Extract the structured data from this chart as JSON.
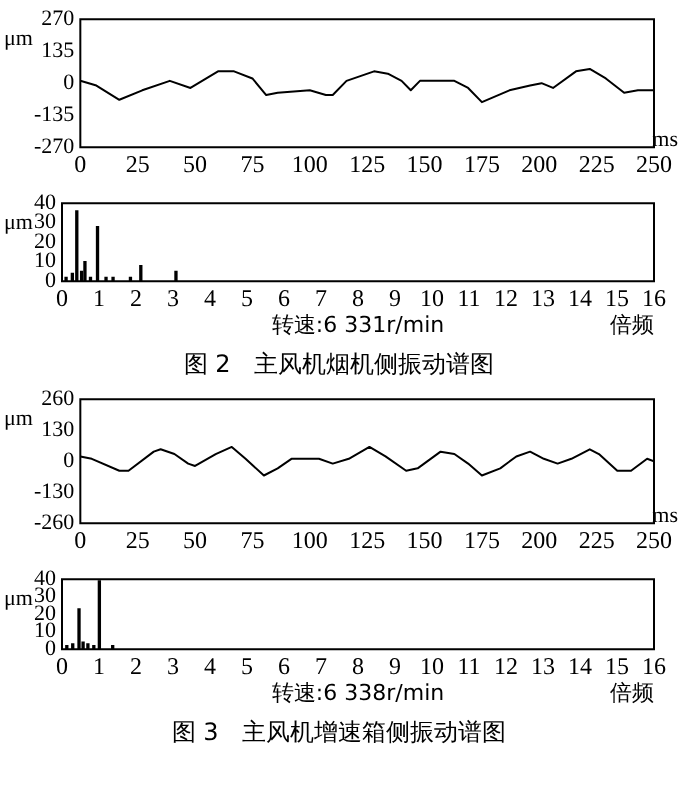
{
  "chart_data": [
    {
      "type": "line",
      "ylabel": "μm",
      "xlabel": "ms",
      "color": "#000000",
      "grid": false,
      "legend": false,
      "marker": "none",
      "line_style": "solid",
      "xlim": [
        0,
        250
      ],
      "xticks": [
        0,
        25,
        50,
        75,
        100,
        125,
        150,
        175,
        200,
        225,
        250
      ],
      "ylim": [
        -270,
        270
      ],
      "yticks": [
        -270,
        -135,
        0,
        135,
        270
      ],
      "x": [
        0,
        7,
        17,
        27,
        39,
        48,
        60,
        67,
        75,
        81,
        86,
        100,
        107,
        110,
        116,
        128,
        134,
        140,
        144,
        148,
        163,
        169,
        175,
        187,
        196,
        201,
        206,
        216,
        222,
        229,
        237,
        243,
        250
      ],
      "values": [
        10,
        -10,
        -70,
        -30,
        10,
        -20,
        50,
        50,
        20,
        -50,
        -40,
        -30,
        -50,
        -50,
        10,
        50,
        40,
        10,
        -30,
        10,
        10,
        -20,
        -80,
        -30,
        -10,
        0,
        -20,
        50,
        60,
        20,
        -40,
        -30,
        -30
      ]
    },
    {
      "type": "bar",
      "ylabel": "μm",
      "xlabel": "倍频",
      "color": "#000000",
      "grid": false,
      "legend": false,
      "xlim": [
        0,
        16
      ],
      "xticks": [
        0,
        1,
        2,
        3,
        4,
        5,
        6,
        7,
        8,
        9,
        10,
        11,
        12,
        13,
        14,
        15,
        16
      ],
      "ylim": [
        0,
        40
      ],
      "yticks": [
        0,
        10,
        20,
        30,
        40
      ],
      "x": [
        0.11,
        0.28,
        0.4,
        0.53,
        0.62,
        0.77,
        0.96,
        1.19,
        1.38,
        1.85,
        2.13,
        3.08
      ],
      "values": [
        2,
        4,
        36,
        5,
        10,
        2,
        28,
        2,
        2,
        2,
        8,
        5
      ],
      "annotations": [
        "转速:6 331r/min",
        "图 2　主风机烟机侧振动谱图"
      ]
    },
    {
      "type": "line",
      "ylabel": "μm",
      "xlabel": "ms",
      "color": "#000000",
      "grid": false,
      "legend": false,
      "marker": "none",
      "line_style": "solid",
      "xlim": [
        0,
        250
      ],
      "xticks": [
        0,
        25,
        50,
        75,
        100,
        125,
        150,
        175,
        200,
        225,
        250
      ],
      "ylim": [
        -260,
        260
      ],
      "yticks": [
        -260,
        -130,
        0,
        130,
        260
      ],
      "x": [
        0,
        5,
        17,
        21,
        32,
        35,
        41,
        47,
        50,
        59,
        66,
        72,
        80,
        86,
        92,
        104,
        110,
        117,
        126,
        133,
        142,
        147,
        157,
        163,
        169,
        175,
        183,
        190,
        196,
        202,
        208,
        214,
        222,
        226,
        234,
        240,
        247,
        250
      ],
      "values": [
        20,
        10,
        -40,
        -40,
        40,
        50,
        30,
        -10,
        -20,
        30,
        60,
        10,
        -60,
        -30,
        10,
        10,
        -10,
        10,
        60,
        20,
        -40,
        -30,
        40,
        30,
        -10,
        -60,
        -30,
        20,
        40,
        10,
        -10,
        10,
        50,
        30,
        -40,
        -40,
        10,
        0
      ]
    },
    {
      "type": "bar",
      "ylabel": "μm",
      "xlabel": "倍频",
      "color": "#000000",
      "grid": false,
      "legend": false,
      "xlim": [
        0,
        16
      ],
      "xticks": [
        0,
        1,
        2,
        3,
        4,
        5,
        6,
        7,
        8,
        9,
        10,
        11,
        12,
        13,
        14,
        15,
        16
      ],
      "ylim": [
        0,
        40
      ],
      "yticks": [
        0,
        10,
        20,
        30,
        40
      ],
      "x": [
        0.13,
        0.29,
        0.46,
        0.57,
        0.7,
        0.86,
        1.01,
        1.37
      ],
      "values": [
        2,
        3,
        23,
        4,
        3,
        2,
        39,
        2
      ],
      "annotations": [
        "转速:6 338r/min",
        "图 3　主风机增速箱侧振动谱图"
      ]
    }
  ]
}
